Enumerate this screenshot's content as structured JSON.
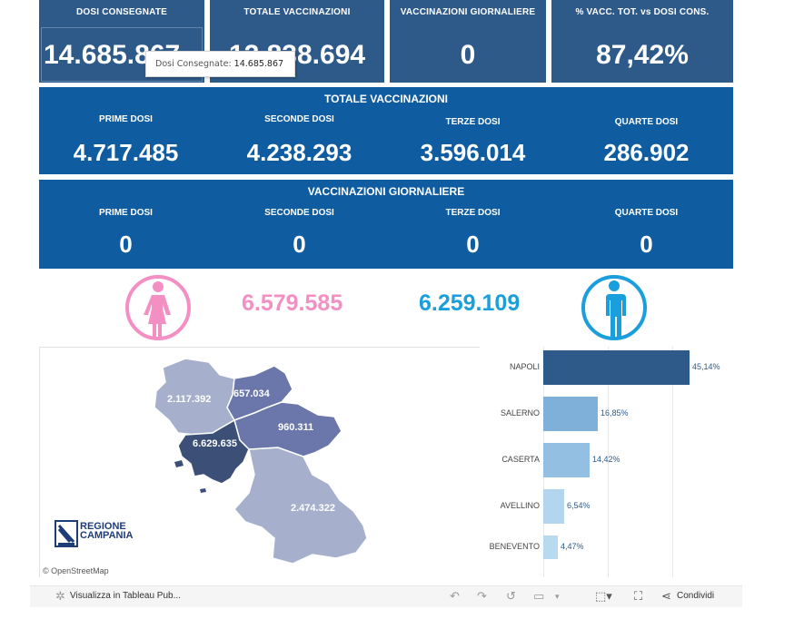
{
  "kpis": [
    {
      "label": "DOSI  CONSEGNATE",
      "value": "14.685.867"
    },
    {
      "label": "TOTALE VACCINAZIONI",
      "value": "12.838.694"
    },
    {
      "label": "VACCINAZIONI GIORNALIERE",
      "value": "0"
    },
    {
      "label": "% VACC. TOT. vs DOSI CONS.",
      "value": "87,42%"
    }
  ],
  "tooltip": {
    "label": "Dosi Consegnate:",
    "value": "14.685.867"
  },
  "totale": {
    "title": "TOTALE VACCINAZIONI",
    "cells": [
      {
        "label": "PRIME DOSI",
        "value": "4.717.485"
      },
      {
        "label": "SECONDE DOSI",
        "value": "4.238.293"
      },
      {
        "label": "TERZE DOSI",
        "value": "3.596.014"
      },
      {
        "label": "QUARTE DOSI",
        "value": "286.902"
      }
    ]
  },
  "giornaliere": {
    "title": "VACCINAZIONI GIORNALIERE",
    "cells": [
      {
        "label": "PRIME DOSI",
        "value": "0"
      },
      {
        "label": "SECONDE DOSI",
        "value": "0"
      },
      {
        "label": "TERZE DOSI",
        "value": "0"
      },
      {
        "label": "QUARTE DOSI",
        "value": "0"
      }
    ]
  },
  "gender": {
    "female": "6.579.585",
    "male": "6.259.109",
    "female_color": "#f48fc4",
    "male_color": "#1a9fdc"
  },
  "map": {
    "labels": {
      "caserta": "2.117.392",
      "benevento": "657.034",
      "avellino": "960.311",
      "napoli": "6.629.635",
      "salerno": "2.474.322"
    },
    "osm": "© OpenStreetMap",
    "logo_line1": "REGIONE",
    "logo_line2": "CAMPANIA"
  },
  "chart_data": {
    "type": "bar",
    "orientation": "horizontal",
    "categories": [
      "NAPOLI",
      "SALERNO",
      "CASERTA",
      "AVELLINO",
      "BENEVENTO"
    ],
    "values": [
      45.14,
      16.85,
      14.42,
      6.54,
      4.47
    ],
    "value_labels": [
      "45,14%",
      "16,85%",
      "14,42%",
      "6,54%",
      "4,47%"
    ],
    "colors": [
      "#2e5a8a",
      "#7eb0d9",
      "#93bfe2",
      "#b3d6ef",
      "#b8daf0"
    ],
    "xlim": [
      0,
      50
    ]
  },
  "toolbar": {
    "view_in_tableau": "Visualizza in Tableau Pub...",
    "share": "Condividi"
  }
}
